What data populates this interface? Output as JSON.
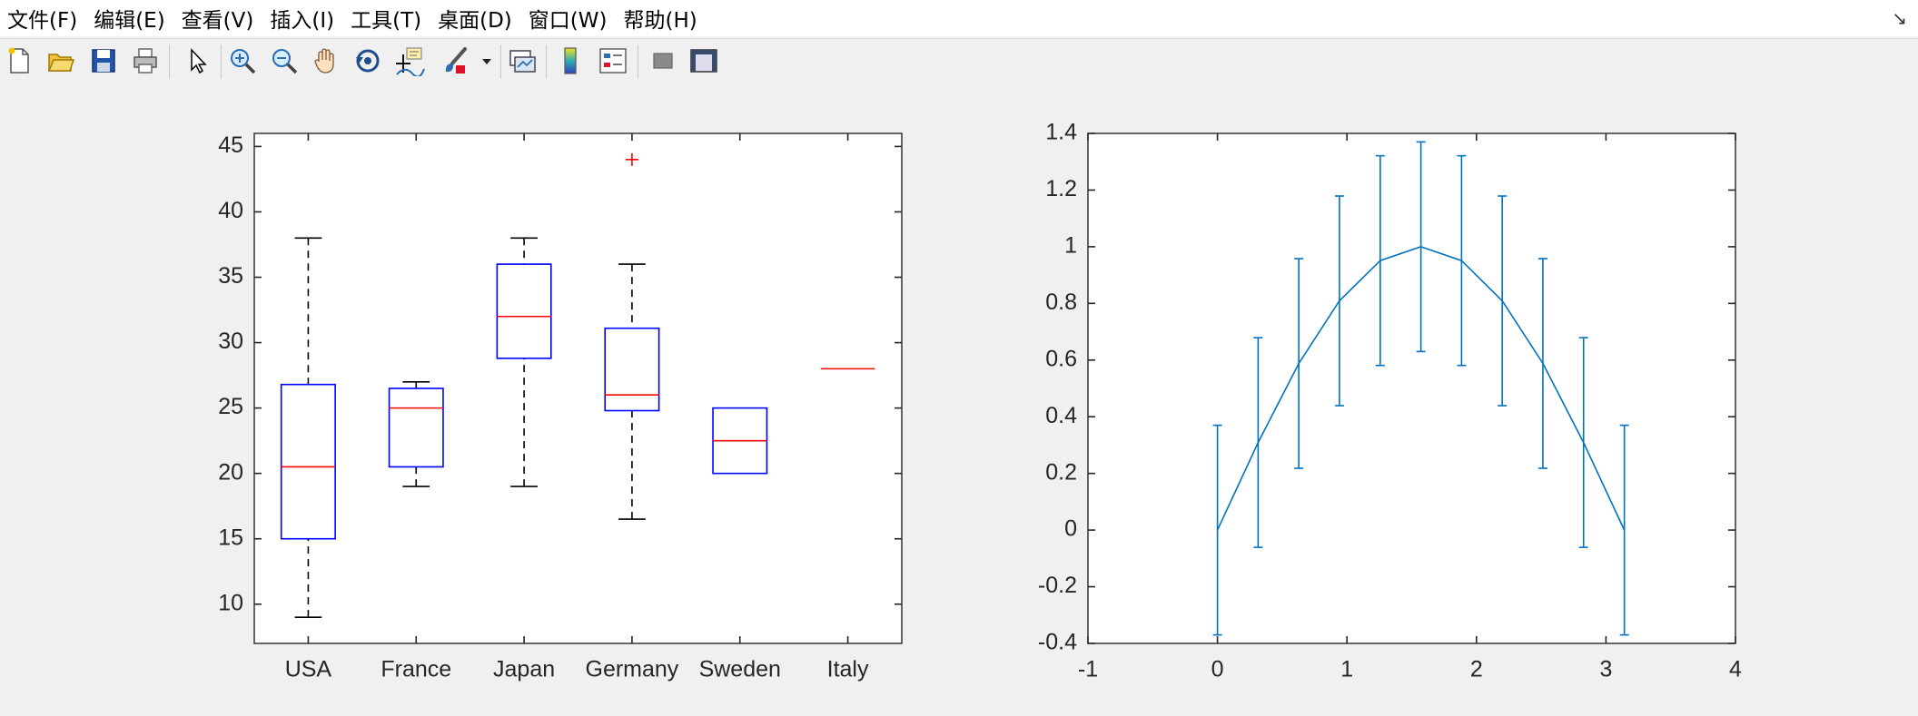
{
  "menubar": {
    "items": [
      "文件(F)",
      "编辑(E)",
      "查看(V)",
      "插入(I)",
      "工具(T)",
      "桌面(D)",
      "窗口(W)",
      "帮助(H)"
    ]
  },
  "toolbar": {
    "buttons": [
      "new-file-icon",
      "open-file-icon",
      "save-icon",
      "print-icon",
      "edit-plot-arrow-icon",
      "zoom-in-icon",
      "zoom-out-icon",
      "pan-hand-icon",
      "rotate-3d-icon",
      "data-cursor-icon",
      "brush-icon",
      "brush-dropdown-icon",
      "link-plot-icon",
      "colorbar-icon",
      "legend-icon",
      "hide-plot-tools-icon",
      "show-plot-tools-icon"
    ]
  },
  "colors": {
    "box": "#0000ff",
    "median": "#ff0000",
    "whisker": "#000000",
    "outlier": "#ff0000",
    "errorbar_line": "#0072bd"
  },
  "chart_data": [
    {
      "type": "boxplot",
      "categories": [
        "USA",
        "France",
        "Japan",
        "Germany",
        "Sweden",
        "Italy"
      ],
      "boxes": [
        {
          "name": "USA",
          "whisker_low": 9,
          "q1": 15,
          "median": 20.5,
          "q3": 26.8,
          "whisker_high": 38,
          "outliers": []
        },
        {
          "name": "France",
          "whisker_low": 19,
          "q1": 20.5,
          "median": 25,
          "q3": 26.5,
          "whisker_high": 27,
          "outliers": []
        },
        {
          "name": "Japan",
          "whisker_low": 19,
          "q1": 28.8,
          "median": 32,
          "q3": 36,
          "whisker_high": 38,
          "outliers": []
        },
        {
          "name": "Germany",
          "whisker_low": 16.5,
          "q1": 24.8,
          "median": 26,
          "q3": 31.1,
          "whisker_high": 36,
          "outliers": [
            44
          ]
        },
        {
          "name": "Sweden",
          "whisker_low": 20,
          "q1": 20,
          "median": 22.5,
          "q3": 25,
          "whisker_high": 25,
          "outliers": []
        },
        {
          "name": "Italy",
          "whisker_low": 28,
          "q1": 28,
          "median": 28,
          "q3": 28,
          "whisker_high": 28,
          "outliers": []
        }
      ],
      "ylim": [
        7,
        46
      ],
      "yticks": [
        10,
        15,
        20,
        25,
        30,
        35,
        40,
        45
      ],
      "ytick_labels": [
        "10",
        "15",
        "20",
        "25",
        "30",
        "35",
        "40",
        "45"
      ],
      "grid": false
    },
    {
      "type": "errorbar",
      "x": [
        0,
        0.314,
        0.628,
        0.942,
        1.257,
        1.571,
        1.885,
        2.199,
        2.513,
        2.827,
        3.142
      ],
      "y": [
        0,
        0.309,
        0.588,
        0.809,
        0.951,
        1.0,
        0.951,
        0.809,
        0.588,
        0.309,
        0
      ],
      "error": 0.37,
      "xlim": [
        -1,
        4
      ],
      "ylim": [
        -0.4,
        1.4
      ],
      "xticks": [
        -1,
        0,
        1,
        2,
        3,
        4
      ],
      "xtick_labels": [
        "-1",
        "0",
        "1",
        "2",
        "3",
        "4"
      ],
      "yticks": [
        -0.4,
        -0.2,
        0,
        0.2,
        0.4,
        0.6,
        0.8,
        1,
        1.2,
        1.4
      ],
      "ytick_labels": [
        "-0.4",
        "-0.2",
        "0",
        "0.2",
        "0.4",
        "0.6",
        "0.8",
        "1",
        "1.2",
        "1.4"
      ],
      "grid": false
    }
  ]
}
